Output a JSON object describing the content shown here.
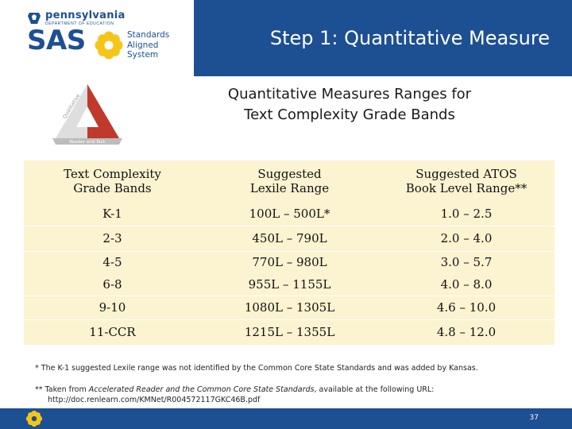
{
  "header": {
    "state_name": "pennsylvania",
    "state_department": "DEPARTMENT OF EDUCATION",
    "brand_acronym": "SAS",
    "brand_line1": "Standards",
    "brand_line2": "Aligned",
    "brand_line3": "System",
    "slide_title": "Step 1:  Quantitative Measure",
    "brand_color": "#1d4f93",
    "accent_color": "#f5c518"
  },
  "triangle_logo": {
    "left_label": "Qualitative",
    "right_label": "Quantitative",
    "bottom_label": "Reader and Task",
    "highlight_color": "#c0392b"
  },
  "subtitle": {
    "line1": "Quantitative Measures Ranges for",
    "line2": "Text Complexity Grade Bands"
  },
  "table": {
    "headers": [
      [
        "Text Complexity",
        "Grade Bands"
      ],
      [
        "Suggested",
        "Lexile Range"
      ],
      [
        "Suggested ATOS",
        "Book Level Range**"
      ]
    ],
    "rows": [
      [
        "K-1",
        "100L – 500L*",
        "1.0 – 2.5"
      ],
      [
        "2-3",
        "450L – 790L",
        "2.0 – 4.0"
      ],
      [
        "4-5",
        "770L – 980L",
        "3.0 – 5.7"
      ],
      [
        "6-8",
        "955L – 1155L",
        "4.0 – 8.0"
      ],
      [
        "9-10",
        "1080L – 1305L",
        "4.6 – 10.0"
      ],
      [
        "11-CCR",
        "1215L – 1355L",
        "4.8 – 12.0"
      ]
    ],
    "shade_color": "#fcf3d1"
  },
  "footnotes": {
    "note1": "* The K-1 suggested Lexile range was not identified by the Common Core State Standards and was added by Kansas.",
    "note2_prefix": "** Taken from ",
    "note2_italic": "Accelerated Reader and the Common Core State Standards",
    "note2_suffix": ", available at the following URL:",
    "note2_url": "http://doc.renlearn.com/KMNet/R004572117GKC46B.pdf"
  },
  "footer": {
    "page_number": "37"
  }
}
